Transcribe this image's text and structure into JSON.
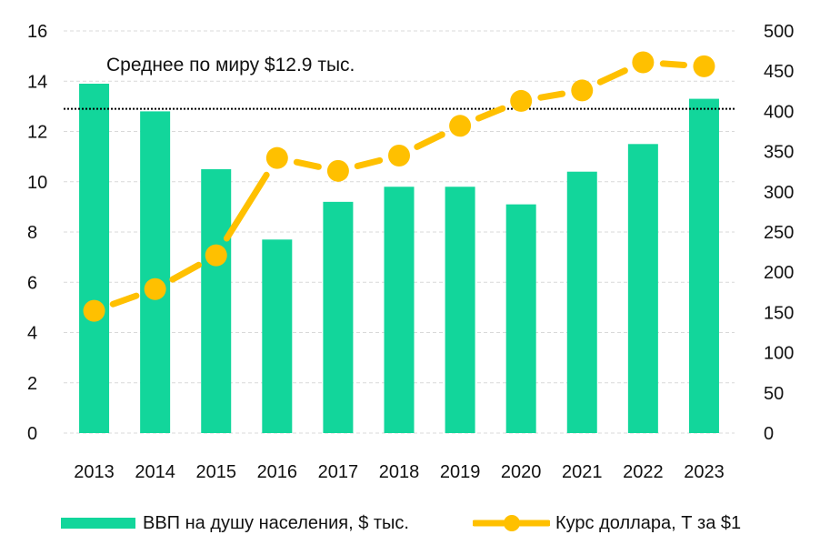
{
  "colors": {
    "bar": "#12d69b",
    "line": "#ffc000",
    "avg_line": "#000000",
    "grid": "#d9d9d9"
  },
  "chart_data": {
    "type": "bar+line",
    "categories": [
      "2013",
      "2014",
      "2015",
      "2016",
      "2017",
      "2018",
      "2019",
      "2020",
      "2021",
      "2022",
      "2023"
    ],
    "series": [
      {
        "name": "ВВП на душу населения, $ тыс.",
        "type": "bar",
        "axis": "left",
        "values": [
          13.9,
          12.8,
          10.5,
          7.7,
          9.2,
          9.8,
          9.8,
          9.1,
          10.4,
          11.5,
          13.3
        ]
      },
      {
        "name": "Курс доллара, Т за $1",
        "type": "line",
        "axis": "right",
        "style": "dashed-with-markers",
        "values": [
          152,
          179,
          221,
          342,
          326,
          345,
          382,
          413,
          426,
          461,
          456
        ]
      }
    ],
    "y_left": {
      "min": 0,
      "max": 16,
      "ticks": [
        0,
        2,
        4,
        6,
        8,
        10,
        12,
        14,
        16
      ]
    },
    "y_right": {
      "min": 0,
      "max": 500,
      "ticks": [
        0,
        50,
        100,
        150,
        200,
        250,
        300,
        350,
        400,
        450,
        500
      ]
    },
    "reference_line": {
      "axis": "left",
      "value": 12.9,
      "style": "dotted",
      "label": "Среднее по миру $12.9 тыс."
    },
    "grid": "horizontal-dashed",
    "legend_position": "bottom"
  }
}
